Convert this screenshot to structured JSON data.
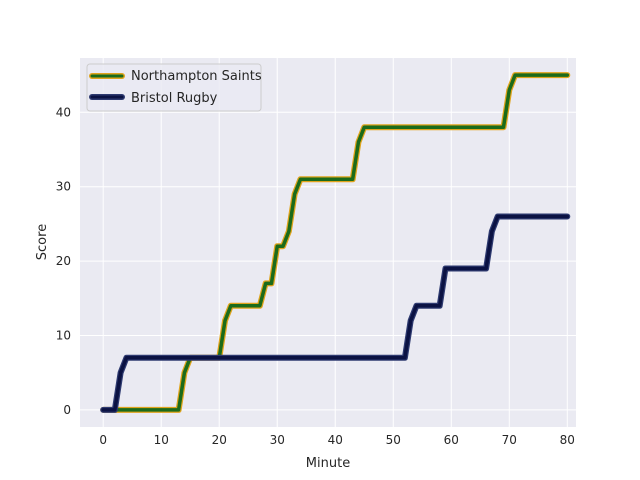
{
  "chart_data": {
    "type": "line",
    "xlabel": "Minute",
    "ylabel": "Score",
    "xlim": [
      -4,
      81.5
    ],
    "ylim": [
      -2.3,
      47.3
    ],
    "xticks": [
      0,
      10,
      20,
      30,
      40,
      50,
      60,
      70,
      80
    ],
    "yticks": [
      0,
      10,
      20,
      30,
      40
    ],
    "grid": true,
    "legend_position": "top-left",
    "series": [
      {
        "name": "Northampton Saints",
        "color": "#1b6b1b",
        "outline_color": "#e0a41c",
        "x": [
          0,
          2,
          3,
          4,
          5,
          6,
          7,
          8,
          9,
          10,
          11,
          12,
          13,
          14,
          15,
          16,
          17,
          18,
          19,
          20,
          21,
          22,
          23,
          24,
          25,
          26,
          27,
          28,
          29,
          30,
          31,
          32,
          33,
          34,
          35,
          36,
          37,
          38,
          39,
          40,
          41,
          42,
          43,
          44,
          45,
          46,
          47,
          48,
          49,
          50,
          51,
          52,
          53,
          54,
          55,
          56,
          57,
          58,
          59,
          60,
          61,
          62,
          63,
          64,
          65,
          66,
          67,
          68,
          69,
          70,
          71,
          72,
          73,
          74,
          75,
          76,
          77,
          78,
          79,
          80
        ],
        "y": [
          0,
          0,
          0,
          0,
          0,
          0,
          0,
          0,
          0,
          0,
          0,
          0,
          0,
          5,
          7,
          7,
          7,
          7,
          7,
          7,
          12,
          14,
          14,
          14,
          14,
          14,
          14,
          17,
          17,
          22,
          22,
          24,
          29,
          31,
          31,
          31,
          31,
          31,
          31,
          31,
          31,
          31,
          31,
          36,
          38,
          38,
          38,
          38,
          38,
          38,
          38,
          38,
          38,
          38,
          38,
          38,
          38,
          38,
          38,
          38,
          38,
          38,
          38,
          38,
          38,
          38,
          38,
          38,
          38,
          43,
          45,
          45,
          45,
          45,
          45,
          45,
          45,
          45,
          45,
          45
        ]
      },
      {
        "name": "Bristol Rugby",
        "color": "#0b1243",
        "outline_color": "#2e3a70",
        "x": [
          0,
          1,
          2,
          3,
          4,
          5,
          6,
          7,
          8,
          9,
          10,
          11,
          12,
          13,
          14,
          15,
          16,
          17,
          18,
          19,
          20,
          21,
          22,
          23,
          24,
          25,
          26,
          27,
          28,
          29,
          30,
          31,
          32,
          33,
          34,
          35,
          36,
          37,
          38,
          39,
          40,
          41,
          42,
          43,
          44,
          45,
          46,
          47,
          48,
          49,
          50,
          51,
          52,
          53,
          54,
          55,
          56,
          57,
          58,
          59,
          60,
          61,
          62,
          63,
          64,
          65,
          66,
          67,
          68,
          69,
          70,
          71,
          72,
          73,
          74,
          75,
          76,
          77,
          78,
          79,
          80
        ],
        "y": [
          0,
          0,
          0,
          5,
          7,
          7,
          7,
          7,
          7,
          7,
          7,
          7,
          7,
          7,
          7,
          7,
          7,
          7,
          7,
          7,
          7,
          7,
          7,
          7,
          7,
          7,
          7,
          7,
          7,
          7,
          7,
          7,
          7,
          7,
          7,
          7,
          7,
          7,
          7,
          7,
          7,
          7,
          7,
          7,
          7,
          7,
          7,
          7,
          7,
          7,
          7,
          7,
          7,
          12,
          14,
          14,
          14,
          14,
          14,
          19,
          19,
          19,
          19,
          19,
          19,
          19,
          19,
          24,
          26,
          26,
          26,
          26,
          26,
          26,
          26,
          26,
          26,
          26,
          26,
          26,
          26
        ]
      }
    ]
  }
}
